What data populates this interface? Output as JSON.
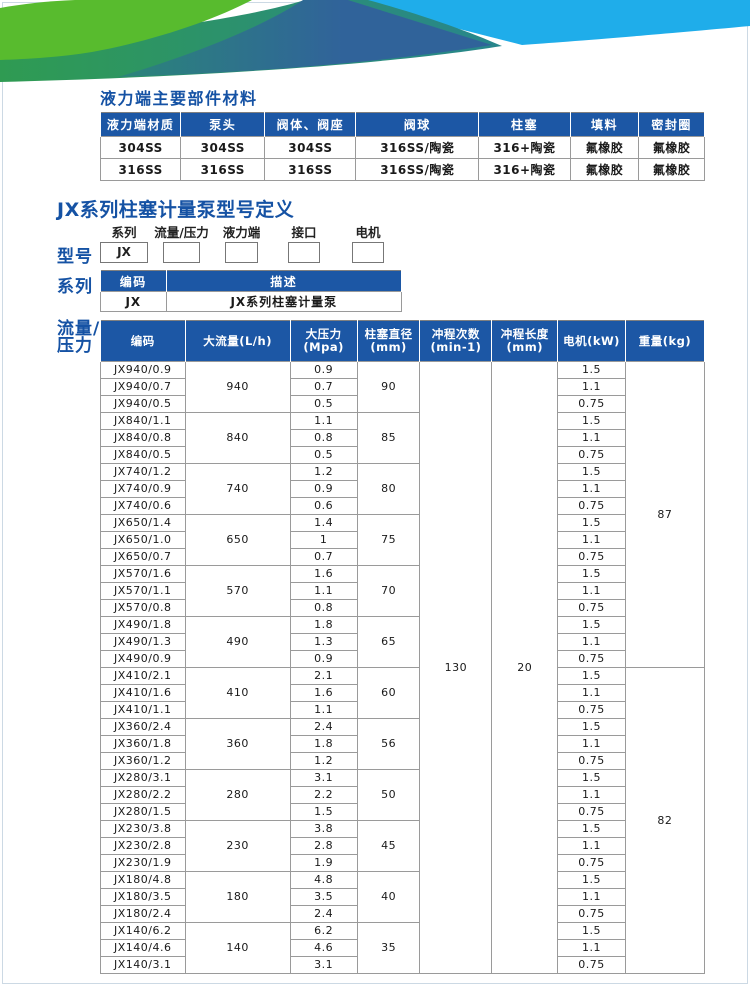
{
  "sections": {
    "materials_title": "液力端主要部件材料",
    "model_def_title": "JX系列柱塞计量泵型号定义"
  },
  "materials_table": {
    "headers": [
      "液力端材质",
      "泵头",
      "阀体、阀座",
      "阀球",
      "柱塞",
      "填料",
      "密封圈"
    ],
    "rows": [
      [
        "304SS",
        "304SS",
        "304SS",
        "316SS/陶瓷",
        "316+陶瓷",
        "氟橡胶",
        "氟橡胶"
      ],
      [
        "316SS",
        "316SS",
        "316SS",
        "316SS/陶瓷",
        "316+陶瓷",
        "氟橡胶",
        "氟橡胶"
      ]
    ]
  },
  "model_def": {
    "row_label": "型号",
    "fields": [
      {
        "label": "系列",
        "value": "JX"
      },
      {
        "label": "流量/压力",
        "value": ""
      },
      {
        "label": "液力端",
        "value": ""
      },
      {
        "label": "接口",
        "value": ""
      },
      {
        "label": "电机",
        "value": ""
      }
    ]
  },
  "series_table": {
    "row_label": "系列",
    "headers": [
      "编码",
      "描述"
    ],
    "rows": [
      [
        "JX",
        "JX系列柱塞计量泵"
      ]
    ]
  },
  "spec_table": {
    "row_label_line1": "流量/",
    "row_label_line2": "压力",
    "headers": [
      "编码",
      "大流量(L/h)",
      "大压力\n(Mpa)",
      "柱塞直径\n(mm)",
      "冲程次数\n(min-1)",
      "冲程长度\n(mm)",
      "电机(kW)",
      "重量(kg)"
    ],
    "stroke_rate": "130",
    "stroke_length": "20",
    "weights": [
      {
        "value": "87",
        "rows": 18
      },
      {
        "value": "82",
        "rows": 18
      }
    ],
    "groups": [
      {
        "flow": "940",
        "plunger": "90",
        "models": [
          {
            "code": "JX940/0.9",
            "pressure": "0.9",
            "motor": "1.5"
          },
          {
            "code": "JX940/0.7",
            "pressure": "0.7",
            "motor": "1.1"
          },
          {
            "code": "JX940/0.5",
            "pressure": "0.5",
            "motor": "0.75"
          }
        ]
      },
      {
        "flow": "840",
        "plunger": "85",
        "models": [
          {
            "code": "JX840/1.1",
            "pressure": "1.1",
            "motor": "1.5"
          },
          {
            "code": "JX840/0.8",
            "pressure": "0.8",
            "motor": "1.1"
          },
          {
            "code": "JX840/0.5",
            "pressure": "0.5",
            "motor": "0.75"
          }
        ]
      },
      {
        "flow": "740",
        "plunger": "80",
        "models": [
          {
            "code": "JX740/1.2",
            "pressure": "1.2",
            "motor": "1.5"
          },
          {
            "code": "JX740/0.9",
            "pressure": "0.9",
            "motor": "1.1"
          },
          {
            "code": "JX740/0.6",
            "pressure": "0.6",
            "motor": "0.75"
          }
        ]
      },
      {
        "flow": "650",
        "plunger": "75",
        "models": [
          {
            "code": "JX650/1.4",
            "pressure": "1.4",
            "motor": "1.5"
          },
          {
            "code": "JX650/1.0",
            "pressure": "1",
            "motor": "1.1"
          },
          {
            "code": "JX650/0.7",
            "pressure": "0.7",
            "motor": "0.75"
          }
        ]
      },
      {
        "flow": "570",
        "plunger": "70",
        "models": [
          {
            "code": "JX570/1.6",
            "pressure": "1.6",
            "motor": "1.5"
          },
          {
            "code": "JX570/1.1",
            "pressure": "1.1",
            "motor": "1.1"
          },
          {
            "code": "JX570/0.8",
            "pressure": "0.8",
            "motor": "0.75"
          }
        ]
      },
      {
        "flow": "490",
        "plunger": "65",
        "models": [
          {
            "code": "JX490/1.8",
            "pressure": "1.8",
            "motor": "1.5"
          },
          {
            "code": "JX490/1.3",
            "pressure": "1.3",
            "motor": "1.1"
          },
          {
            "code": "JX490/0.9",
            "pressure": "0.9",
            "motor": "0.75"
          }
        ]
      },
      {
        "flow": "410",
        "plunger": "60",
        "models": [
          {
            "code": "JX410/2.1",
            "pressure": "2.1",
            "motor": "1.5"
          },
          {
            "code": "JX410/1.6",
            "pressure": "1.6",
            "motor": "1.1"
          },
          {
            "code": "JX410/1.1",
            "pressure": "1.1",
            "motor": "0.75"
          }
        ]
      },
      {
        "flow": "360",
        "plunger": "56",
        "models": [
          {
            "code": "JX360/2.4",
            "pressure": "2.4",
            "motor": "1.5"
          },
          {
            "code": "JX360/1.8",
            "pressure": "1.8",
            "motor": "1.1"
          },
          {
            "code": "JX360/1.2",
            "pressure": "1.2",
            "motor": "0.75"
          }
        ]
      },
      {
        "flow": "280",
        "plunger": "50",
        "models": [
          {
            "code": "JX280/3.1",
            "pressure": "3.1",
            "motor": "1.5"
          },
          {
            "code": "JX280/2.2",
            "pressure": "2.2",
            "motor": "1.1"
          },
          {
            "code": "JX280/1.5",
            "pressure": "1.5",
            "motor": "0.75"
          }
        ]
      },
      {
        "flow": "230",
        "plunger": "45",
        "models": [
          {
            "code": "JX230/3.8",
            "pressure": "3.8",
            "motor": "1.5"
          },
          {
            "code": "JX230/2.8",
            "pressure": "2.8",
            "motor": "1.1"
          },
          {
            "code": "JX230/1.9",
            "pressure": "1.9",
            "motor": "0.75"
          }
        ]
      },
      {
        "flow": "180",
        "plunger": "40",
        "models": [
          {
            "code": "JX180/4.8",
            "pressure": "4.8",
            "motor": "1.5"
          },
          {
            "code": "JX180/3.5",
            "pressure": "3.5",
            "motor": "1.1"
          },
          {
            "code": "JX180/2.4",
            "pressure": "2.4",
            "motor": "0.75"
          }
        ]
      },
      {
        "flow": "140",
        "plunger": "35",
        "models": [
          {
            "code": "JX140/6.2",
            "pressure": "6.2",
            "motor": "1.5"
          },
          {
            "code": "JX140/4.6",
            "pressure": "4.6",
            "motor": "1.1"
          },
          {
            "code": "JX140/3.1",
            "pressure": "3.1",
            "motor": "0.75"
          }
        ]
      }
    ]
  },
  "colors": {
    "accent-blue": "#1552a4",
    "table-header-blue": "#1c57a5",
    "art-light-blue": "#1fadea",
    "art-steel-blue": "#30639a",
    "art-teal": "#2b8579",
    "art-bright-green": "#58bb2e",
    "art-dark-green": "#2f9b52",
    "grid-gray": "#9a9a9a",
    "text-dark": "#1a1a1a",
    "page-frame": "#ccd9e4"
  }
}
